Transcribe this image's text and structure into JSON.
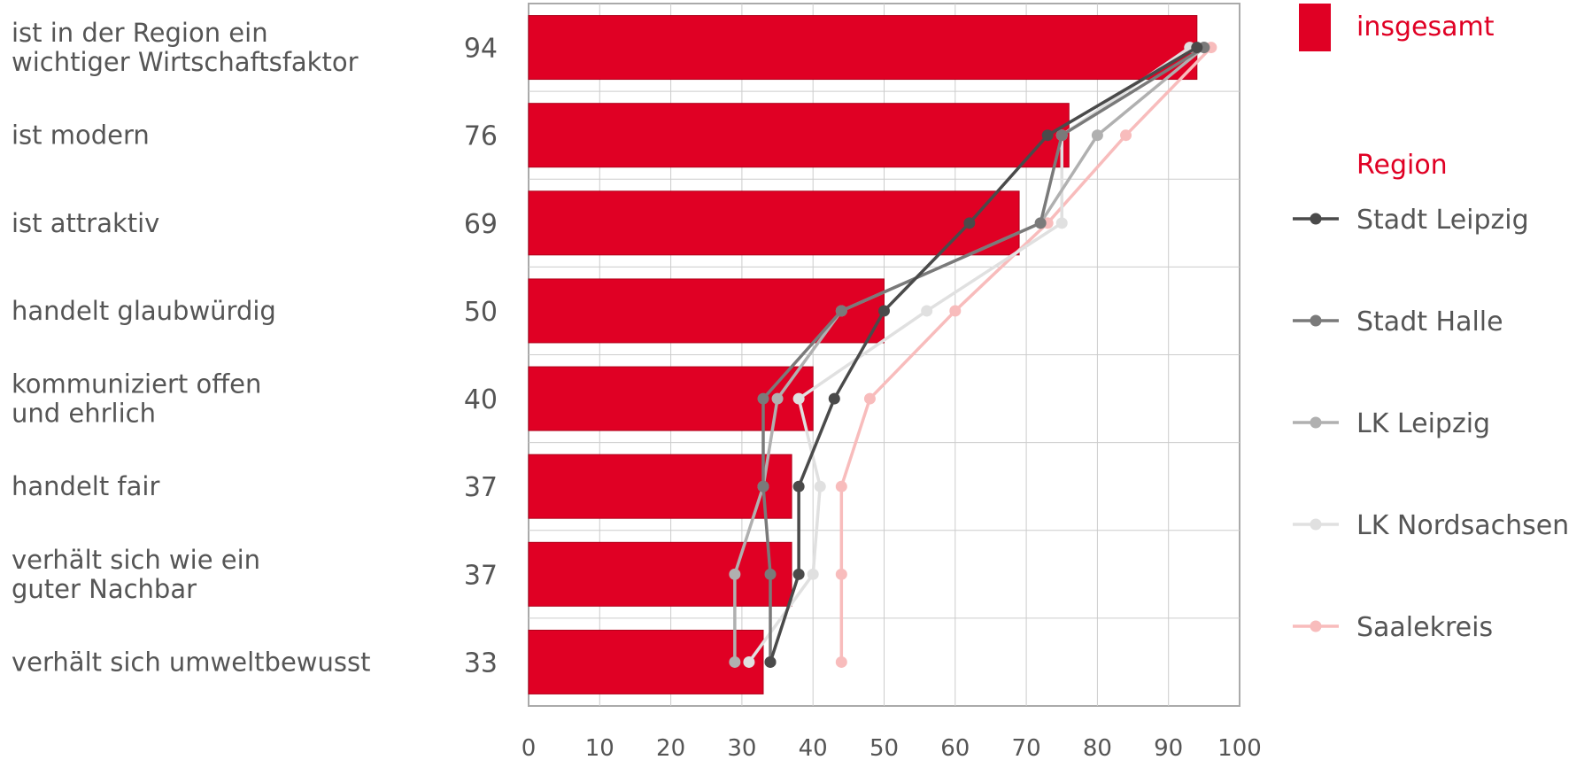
{
  "chart_data": {
    "type": "bar",
    "orientation": "horizontal",
    "categories": [
      [
        "ist in der Region ein",
        "wichtiger  Wirtschaftsfaktor"
      ],
      [
        "ist modern"
      ],
      [
        "ist attraktiv"
      ],
      [
        "handelt glaubwürdig"
      ],
      [
        "kommuniziert offen",
        "und ehrlich"
      ],
      [
        "handelt fair"
      ],
      [
        "verhält sich wie ein",
        "guter Nachbar"
      ],
      [
        "verhält sich umweltbewusst"
      ]
    ],
    "bar_series": {
      "name": "insgesamt",
      "color": "#e00024",
      "values": [
        94,
        76,
        69,
        50,
        40,
        37,
        37,
        33
      ]
    },
    "legend_region_title": "Region",
    "line_series": [
      {
        "name": "Stadt Leipzig",
        "color": "#4a4a4a",
        "values": [
          94,
          73,
          62,
          50,
          43,
          38,
          38,
          34
        ]
      },
      {
        "name": "Stadt Halle",
        "color": "#7a7a7a",
        "values": [
          95,
          75,
          72,
          44,
          33,
          33,
          34,
          34
        ]
      },
      {
        "name": "LK Leipzig",
        "color": "#b0b0b0",
        "values": [
          95,
          80,
          72,
          44,
          35,
          33,
          29,
          29
        ]
      },
      {
        "name": "LK Nordsachsen",
        "color": "#e0e0e0",
        "values": [
          93,
          75,
          75,
          56,
          38,
          41,
          40,
          31
        ]
      },
      {
        "name": "Saalekreis",
        "color": "#f8bcbc",
        "values": [
          96,
          84,
          73,
          60,
          48,
          44,
          44,
          44
        ]
      }
    ],
    "x_ticks": [
      "0",
      "10",
      "20",
      "30",
      "40",
      "50",
      "60",
      "70",
      "80",
      "90",
      "100"
    ],
    "xlim": [
      0,
      100
    ],
    "grid": true,
    "legend_position": "right",
    "colors": {
      "text": "#555555",
      "grid": "#cccccc",
      "axis": "#aaaaaa",
      "accent": "#e00024"
    }
  }
}
